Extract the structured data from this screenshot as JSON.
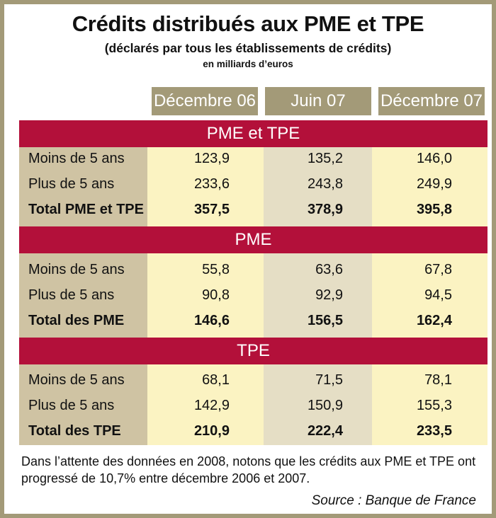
{
  "title": "Crédits distribués aux PME et TPE",
  "subtitle": "(déclarés par tous les établissements de crédits)",
  "unit": "en milliards d’euros",
  "columns": [
    "Décembre 06",
    "Juin 07",
    "Décembre 07"
  ],
  "colors": {
    "frame": "#a39a78",
    "header_bg": "#a39a78",
    "label_col_bg": "#cfc3a3",
    "light_col_bg": "#fbf3c2",
    "mid_col_bg": "#e5dec5",
    "band_bg": "#b3103a"
  },
  "sections": [
    {
      "title": "PME et TPE",
      "rows": [
        {
          "label": "Moins de 5 ans",
          "values": [
            "123,9",
            "135,2",
            "146,0"
          ]
        },
        {
          "label": "Plus de 5 ans",
          "values": [
            "233,6",
            "243,8",
            "249,9"
          ]
        },
        {
          "label": "Total PME et TPE",
          "values": [
            "357,5",
            "378,9",
            "395,8"
          ]
        }
      ]
    },
    {
      "title": "PME",
      "rows": [
        {
          "label": "Moins de 5 ans",
          "values": [
            "55,8",
            "63,6",
            "67,8"
          ]
        },
        {
          "label": "Plus de 5 ans",
          "values": [
            "90,8",
            "92,9",
            "94,5"
          ]
        },
        {
          "label": "Total des PME",
          "values": [
            "146,6",
            "156,5",
            "162,4"
          ]
        }
      ]
    },
    {
      "title": "TPE",
      "rows": [
        {
          "label": "Moins de 5 ans",
          "values": [
            "68,1",
            "71,5",
            "78,1"
          ]
        },
        {
          "label": "Plus de 5 ans",
          "values": [
            "142,9",
            "150,9",
            "155,3"
          ]
        },
        {
          "label": "Total des TPE",
          "values": [
            "210,9",
            "222,4",
            "233,5"
          ]
        }
      ]
    }
  ],
  "note": "Dans l’attente des données en 2008, notons que les crédits aux PME et TPE ont progressé de 10,7% entre décembre 2006 et 2007.",
  "source": "Source : Banque de France"
}
